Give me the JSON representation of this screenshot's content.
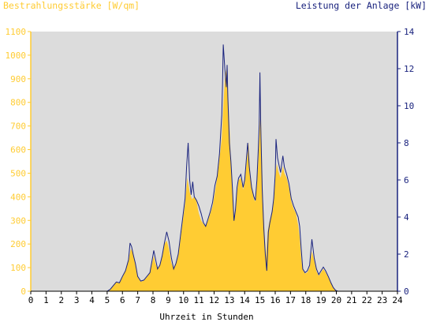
{
  "chart_data": {
    "type": "area",
    "left_axis_title": "Bestrahlungsstärke [W/qm]",
    "right_axis_title": "Leistung der Anlage [kW]",
    "xlabel": "Uhrzeit in Stunden",
    "x_ticks": [
      "0",
      "1",
      "2",
      "3",
      "4",
      "5",
      "6",
      "7",
      "8",
      "9",
      "10",
      "11",
      "12",
      "13",
      "14",
      "15",
      "16",
      "17",
      "18",
      "19",
      "20",
      "21",
      "22",
      "23",
      "24"
    ],
    "y_left_ticks": [
      "0",
      "100",
      "200",
      "300",
      "400",
      "500",
      "600",
      "700",
      "800",
      "900",
      "1000",
      "1100"
    ],
    "y_right_ticks": [
      "0",
      "2",
      "4",
      "6",
      "8",
      "10",
      "12",
      "14"
    ],
    "xlim": [
      0,
      24
    ],
    "ylim_left": [
      0,
      1100
    ],
    "ylim_right": [
      0,
      14
    ],
    "grid": false,
    "colors": {
      "background": "#dcdcdc",
      "irradiance_fill": "#ffcc33",
      "left_axis_text": "#ffcc33",
      "power_line": "#1a237e",
      "right_axis_text": "#1a237e"
    },
    "series": [
      {
        "name": "Bestrahlungsstärke [W/qm]",
        "axis": "left",
        "style": "area",
        "points": [
          [
            0,
            0
          ],
          [
            5.0,
            0
          ],
          [
            5.2,
            5
          ],
          [
            5.4,
            25
          ],
          [
            5.6,
            40
          ],
          [
            5.8,
            35
          ],
          [
            6.0,
            60
          ],
          [
            6.2,
            90
          ],
          [
            6.4,
            130
          ],
          [
            6.55,
            180
          ],
          [
            6.7,
            160
          ],
          [
            6.85,
            110
          ],
          [
            7.0,
            60
          ],
          [
            7.2,
            40
          ],
          [
            7.4,
            45
          ],
          [
            7.6,
            60
          ],
          [
            7.8,
            80
          ],
          [
            7.95,
            120
          ],
          [
            8.05,
            150
          ],
          [
            8.15,
            120
          ],
          [
            8.3,
            95
          ],
          [
            8.45,
            110
          ],
          [
            8.6,
            150
          ],
          [
            8.75,
            200
          ],
          [
            8.9,
            215
          ],
          [
            9.05,
            180
          ],
          [
            9.2,
            120
          ],
          [
            9.35,
            95
          ],
          [
            9.5,
            115
          ],
          [
            9.65,
            150
          ],
          [
            9.8,
            220
          ],
          [
            9.95,
            300
          ],
          [
            10.1,
            370
          ],
          [
            10.25,
            480
          ],
          [
            10.4,
            420
          ],
          [
            10.55,
            390
          ],
          [
            10.7,
            400
          ],
          [
            10.85,
            380
          ],
          [
            11.0,
            330
          ],
          [
            11.15,
            300
          ],
          [
            11.3,
            285
          ],
          [
            11.45,
            275
          ],
          [
            11.6,
            300
          ],
          [
            11.75,
            330
          ],
          [
            11.9,
            360
          ],
          [
            12.05,
            420
          ],
          [
            12.2,
            480
          ],
          [
            12.35,
            560
          ],
          [
            12.5,
            650
          ],
          [
            12.6,
            780
          ],
          [
            12.7,
            900
          ],
          [
            12.8,
            940
          ],
          [
            12.9,
            860
          ],
          [
            13.0,
            700
          ],
          [
            13.1,
            560
          ],
          [
            13.2,
            420
          ],
          [
            13.3,
            300
          ],
          [
            13.4,
            340
          ],
          [
            13.5,
            420
          ],
          [
            13.6,
            470
          ],
          [
            13.75,
            480
          ],
          [
            13.9,
            430
          ],
          [
            14.0,
            460
          ],
          [
            14.15,
            560
          ],
          [
            14.25,
            630
          ],
          [
            14.35,
            510
          ],
          [
            14.5,
            430
          ],
          [
            14.6,
            390
          ],
          [
            14.7,
            380
          ],
          [
            14.8,
            450
          ],
          [
            14.9,
            560
          ],
          [
            15.0,
            710
          ],
          [
            15.05,
            790
          ],
          [
            15.1,
            640
          ],
          [
            15.2,
            380
          ],
          [
            15.3,
            250
          ],
          [
            15.4,
            140
          ],
          [
            15.5,
            250
          ],
          [
            15.6,
            290
          ],
          [
            15.75,
            330
          ],
          [
            15.9,
            380
          ],
          [
            16.0,
            470
          ],
          [
            16.1,
            540
          ],
          [
            16.2,
            510
          ],
          [
            16.35,
            480
          ],
          [
            16.5,
            530
          ],
          [
            16.6,
            500
          ],
          [
            16.75,
            480
          ],
          [
            16.9,
            440
          ],
          [
            17.05,
            380
          ],
          [
            17.2,
            350
          ],
          [
            17.35,
            330
          ],
          [
            17.5,
            280
          ],
          [
            17.6,
            230
          ],
          [
            17.7,
            140
          ],
          [
            17.8,
            90
          ],
          [
            17.95,
            75
          ],
          [
            18.1,
            80
          ],
          [
            18.25,
            100
          ],
          [
            18.4,
            170
          ],
          [
            18.55,
            130
          ],
          [
            18.7,
            85
          ],
          [
            18.85,
            65
          ],
          [
            19.0,
            80
          ],
          [
            19.15,
            95
          ],
          [
            19.3,
            80
          ],
          [
            19.5,
            55
          ],
          [
            19.65,
            35
          ],
          [
            19.8,
            15
          ],
          [
            19.95,
            3
          ],
          [
            20.1,
            0
          ],
          [
            24,
            0
          ]
        ]
      },
      {
        "name": "Leistung der Anlage [kW]",
        "axis": "right",
        "style": "line",
        "points": [
          [
            0,
            0
          ],
          [
            5.0,
            0
          ],
          [
            5.2,
            0.1
          ],
          [
            5.4,
            0.3
          ],
          [
            5.6,
            0.5
          ],
          [
            5.8,
            0.45
          ],
          [
            6.0,
            0.8
          ],
          [
            6.2,
            1.1
          ],
          [
            6.4,
            1.7
          ],
          [
            6.5,
            2.6
          ],
          [
            6.6,
            2.4
          ],
          [
            6.7,
            2.0
          ],
          [
            6.85,
            1.5
          ],
          [
            7.0,
            0.8
          ],
          [
            7.2,
            0.55
          ],
          [
            7.4,
            0.6
          ],
          [
            7.6,
            0.8
          ],
          [
            7.8,
            1.0
          ],
          [
            7.95,
            1.7
          ],
          [
            8.05,
            2.2
          ],
          [
            8.15,
            1.8
          ],
          [
            8.3,
            1.2
          ],
          [
            8.45,
            1.4
          ],
          [
            8.6,
            1.9
          ],
          [
            8.75,
            2.6
          ],
          [
            8.9,
            3.2
          ],
          [
            9.05,
            2.7
          ],
          [
            9.2,
            1.8
          ],
          [
            9.35,
            1.2
          ],
          [
            9.5,
            1.5
          ],
          [
            9.65,
            2.0
          ],
          [
            9.8,
            3.0
          ],
          [
            9.95,
            4.0
          ],
          [
            10.1,
            5.0
          ],
          [
            10.2,
            6.7
          ],
          [
            10.3,
            8.0
          ],
          [
            10.4,
            6.0
          ],
          [
            10.5,
            5.2
          ],
          [
            10.6,
            5.9
          ],
          [
            10.7,
            5.1
          ],
          [
            10.85,
            4.9
          ],
          [
            11.0,
            4.6
          ],
          [
            11.15,
            4.2
          ],
          [
            11.3,
            3.7
          ],
          [
            11.45,
            3.5
          ],
          [
            11.6,
            3.9
          ],
          [
            11.75,
            4.3
          ],
          [
            11.9,
            4.8
          ],
          [
            12.05,
            5.7
          ],
          [
            12.2,
            6.2
          ],
          [
            12.35,
            7.4
          ],
          [
            12.5,
            9.5
          ],
          [
            12.55,
            11.2
          ],
          [
            12.6,
            13.3
          ],
          [
            12.7,
            12.0
          ],
          [
            12.8,
            11.0
          ],
          [
            12.85,
            12.2
          ],
          [
            12.9,
            10.5
          ],
          [
            13.0,
            8.0
          ],
          [
            13.1,
            7.0
          ],
          [
            13.2,
            5.5
          ],
          [
            13.3,
            3.8
          ],
          [
            13.4,
            4.4
          ],
          [
            13.5,
            5.6
          ],
          [
            13.6,
            6.1
          ],
          [
            13.75,
            6.3
          ],
          [
            13.9,
            5.6
          ],
          [
            14.0,
            6.0
          ],
          [
            14.1,
            7.0
          ],
          [
            14.2,
            8.0
          ],
          [
            14.3,
            6.7
          ],
          [
            14.45,
            5.6
          ],
          [
            14.6,
            5.1
          ],
          [
            14.7,
            4.9
          ],
          [
            14.8,
            6.0
          ],
          [
            14.9,
            7.8
          ],
          [
            14.95,
            9.0
          ],
          [
            15.0,
            11.8
          ],
          [
            15.05,
            9.0
          ],
          [
            15.15,
            5.5
          ],
          [
            15.25,
            3.4
          ],
          [
            15.35,
            2.0
          ],
          [
            15.45,
            1.1
          ],
          [
            15.55,
            3.2
          ],
          [
            15.65,
            3.7
          ],
          [
            15.8,
            4.3
          ],
          [
            15.9,
            5.0
          ],
          [
            16.0,
            6.3
          ],
          [
            16.05,
            8.2
          ],
          [
            16.15,
            7.2
          ],
          [
            16.25,
            6.8
          ],
          [
            16.35,
            6.4
          ],
          [
            16.5,
            7.3
          ],
          [
            16.6,
            6.7
          ],
          [
            16.75,
            6.3
          ],
          [
            16.9,
            5.8
          ],
          [
            17.05,
            5.0
          ],
          [
            17.2,
            4.6
          ],
          [
            17.35,
            4.3
          ],
          [
            17.5,
            4.0
          ],
          [
            17.6,
            3.5
          ],
          [
            17.7,
            2.3
          ],
          [
            17.8,
            1.2
          ],
          [
            17.95,
            1.0
          ],
          [
            18.1,
            1.1
          ],
          [
            18.25,
            1.4
          ],
          [
            18.4,
            2.8
          ],
          [
            18.55,
            1.8
          ],
          [
            18.7,
            1.2
          ],
          [
            18.85,
            0.9
          ],
          [
            19.0,
            1.1
          ],
          [
            19.15,
            1.3
          ],
          [
            19.3,
            1.1
          ],
          [
            19.5,
            0.75
          ],
          [
            19.65,
            0.45
          ],
          [
            19.8,
            0.2
          ],
          [
            19.95,
            0.05
          ],
          [
            20.1,
            0
          ],
          [
            24,
            0
          ]
        ]
      }
    ]
  }
}
